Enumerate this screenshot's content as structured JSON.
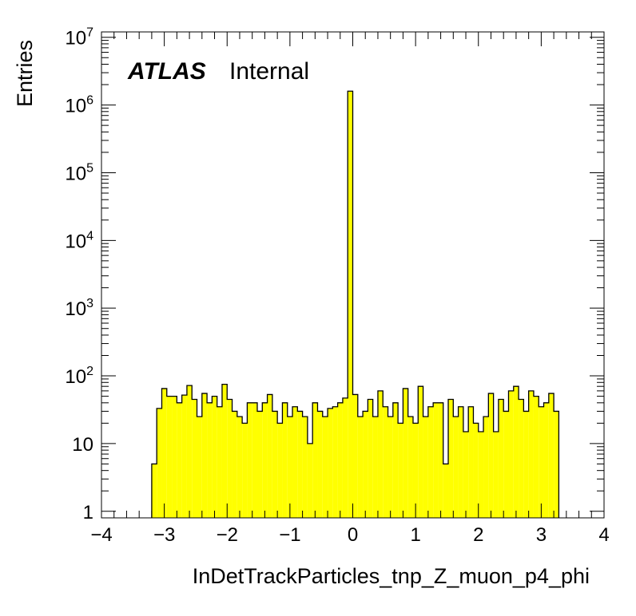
{
  "chart_data": {
    "type": "bar",
    "histogram": true,
    "xlabel": "InDetTrackParticles_tnp_Z_muon_p4_phi",
    "ylabel": "Entries",
    "xlim": [
      -4,
      4
    ],
    "ylim": [
      0.8,
      12000000
    ],
    "yscale": "log",
    "bin_width": 0.08,
    "x_start": -3.2,
    "fill_color": "#ffff00",
    "line_color": "#000000",
    "x_ticks": [
      "−4",
      "−3",
      "−2",
      "−1",
      "0",
      "1",
      "2",
      "3",
      "4"
    ],
    "x_tick_values": [
      -4,
      -3,
      -2,
      -1,
      0,
      1,
      2,
      3,
      4
    ],
    "y_ticks": [
      {
        "value": 1,
        "base": "1",
        "exp": ""
      },
      {
        "value": 10,
        "base": "10",
        "exp": ""
      },
      {
        "value": 100,
        "base": "10",
        "exp": "2"
      },
      {
        "value": 1000,
        "base": "10",
        "exp": "3"
      },
      {
        "value": 10000,
        "base": "10",
        "exp": "4"
      },
      {
        "value": 100000,
        "base": "10",
        "exp": "5"
      },
      {
        "value": 1000000,
        "base": "10",
        "exp": "6"
      },
      {
        "value": 10000000,
        "base": "10",
        "exp": "7"
      }
    ],
    "values": [
      5,
      33,
      65,
      50,
      50,
      40,
      52,
      72,
      45,
      25,
      55,
      40,
      50,
      35,
      75,
      45,
      30,
      25,
      20,
      40,
      40,
      30,
      40,
      53,
      30,
      20,
      40,
      25,
      35,
      30,
      25,
      10,
      40,
      30,
      25,
      33,
      35,
      40,
      47,
      1600000,
      53,
      25,
      30,
      45,
      25,
      60,
      35,
      25,
      40,
      20,
      65,
      25,
      20,
      70,
      25,
      35,
      40,
      40,
      5,
      45,
      25,
      35,
      15,
      35,
      20,
      15,
      25,
      55,
      15,
      45,
      30,
      60,
      70,
      45,
      30,
      60,
      50,
      35,
      40,
      55,
      30
    ]
  },
  "legend_text": {
    "atlas": "ATLAS",
    "internal": "Internal"
  }
}
